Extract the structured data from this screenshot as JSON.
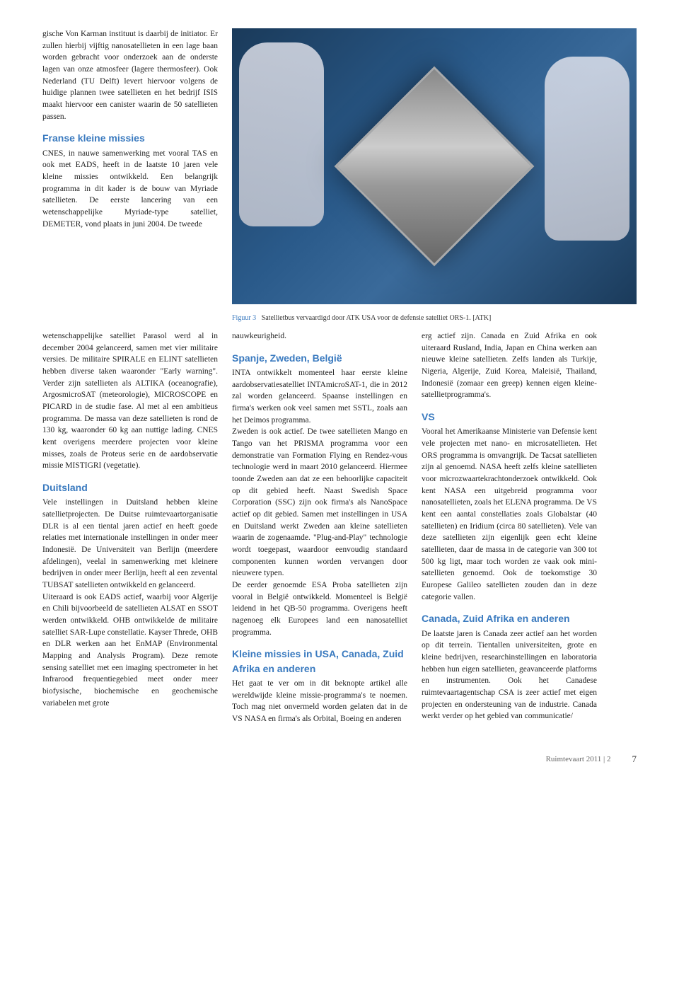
{
  "colors": {
    "heading": "#3a7abf",
    "caption_label": "#3a7abf",
    "body_text": "#222222",
    "footer_text": "#666666",
    "background": "#ffffff"
  },
  "typography": {
    "body_fontsize": 11.5,
    "heading_fontsize": 14,
    "caption_fontsize": 10,
    "footer_fontsize": 11
  },
  "photo": {
    "alt": "Twee technici in cleanroom-pakken werken aan een satellietbus",
    "caption_label": "Figuur 3",
    "caption_text": "Satellietbus vervaardigd door ATK USA voor de defensie satelliet ORS-1. [ATK]"
  },
  "col1_top": {
    "p1": "gische Von Karman instituut is daarbij de initiator. Er zullen hierbij vijftig nanosatellieten in een lage baan worden gebracht voor onderzoek aan de onderste lagen van onze atmosfeer (lagere thermosfeer). Ook Nederland (TU Delft) levert hiervoor volgens de huidige plannen twee satellieten en het bedrijf ISIS maakt hiervoor een canister waarin de 50 satellieten passen.",
    "h1": "Franse kleine missies",
    "p2": "CNES, in nauwe samenwerking met vooral TAS en ook met EADS, heeft in de laatste 10 jaren vele kleine missies ontwikkeld. Een belangrijk programma in dit kader is de bouw van Myriade satellieten. De eerste lancering van een wetenschappelijke Myriade-type satelliet, DEMETER, vond plaats in juni 2004. De tweede"
  },
  "col1_bottom": {
    "p1": "wetenschappelijke satelliet Parasol werd al in december 2004 gelanceerd, samen met vier militaire versies. De militaire SPIRALE en ELINT satellieten hebben diverse taken waaronder \"Early warning\". Verder zijn satellieten als ALTIKA (oceanografie), ArgosmicroSAT (meteorologie), MICROSCOPE en PICARD in de studie fase. Al met al een ambitieus programma. De massa van deze satellieten is rond de 130 kg, waaronder 60 kg aan nuttige lading. CNES kent overigens meerdere projecten voor kleine misses, zoals de Proteus serie en de aardobservatie missie MISTIGRI (vegetatie).",
    "h1": "Duitsland",
    "p2": "Vele instellingen in Duitsland hebben kleine satellietprojecten. De Duitse ruimtevaartorganisatie DLR is al een tiental jaren actief en heeft goede relaties met internationale instellingen in onder meer Indonesië. De Universiteit van Berlijn (meerdere afdelingen), veelal in samenwerking met kleinere bedrijven in onder meer Berlijn, heeft al een zevental TUBSAT satellieten ontwikkeld en gelanceerd.",
    "p3": "Uiteraard is ook EADS actief, waarbij voor Algerije en Chili bijvoorbeeld de satellieten ALSAT en SSOT werden ontwikkeld. OHB ontwikkelde de militaire satelliet SAR-Lupe constellatie. Kayser Threde, OHB en DLR werken aan het EnMAP (Environmental Mapping and Analysis Program). Deze remote sensing satelliet met een imaging spectrometer in het Infrarood frequentiegebied meet onder meer biofysische, biochemische en geochemische variabelen met grote"
  },
  "col2": {
    "p1": "nauwkeurigheid.",
    "h1": "Spanje, Zweden, België",
    "p2": "INTA ontwikkelt momenteel haar eerste kleine aardobservatiesatelliet INTAmicroSAT-1, die in 2012 zal worden gelanceerd. Spaanse instellingen en firma's werken ook veel samen met SSTL, zoals aan het Deimos programma.",
    "p3": "Zweden is ook actief. De twee satellieten Mango en Tango van het PRISMA programma voor een demonstratie van Formation Flying en Rendez-vous technologie werd in maart 2010 gelanceerd. Hiermee toonde Zweden aan dat ze een behoorlijke capaciteit op dit gebied heeft. Naast Swedish Space Corporation (SSC) zijn ook firma's als NanoSpace actief op dit gebied. Samen met instellingen in USA en Duitsland werkt Zweden aan kleine satellieten waarin de zogenaamde. \"Plug-and-Play\" technologie wordt toegepast, waardoor eenvoudig standaard componenten kunnen worden vervangen door nieuwere typen.",
    "p4": "De eerder genoemde ESA Proba satellieten zijn vooral in België ontwikkeld. Momenteel is België leidend in het QB-50 programma. Overigens heeft nagenoeg elk Europees land een nanosatelliet programma.",
    "h2": "Kleine missies in USA, Canada, Zuid Afrika en anderen",
    "p5": "Het gaat te ver om in dit beknopte artikel alle wereldwijde kleine missie-programma's te noemen. Toch mag niet onvermeld worden gelaten dat in de VS NASA en firma's als Orbital, Boeing en anderen"
  },
  "col3": {
    "p1": "erg actief zijn. Canada en Zuid Afrika en ook uiteraard Rusland, India, Japan en China werken aan nieuwe kleine satellieten. Zelfs landen als Turkije, Nigeria, Algerije, Zuid Korea, Maleisië, Thailand, Indonesië (zomaar een greep) kennen eigen kleine-satellietprogramma's.",
    "h1": "VS",
    "p2": "Vooral het Amerikaanse Ministerie van Defensie kent vele projecten met nano- en microsatellieten. Het ORS programma is omvangrijk. De Tacsat satellieten zijn al genoemd. NASA heeft zelfs kleine satellieten voor microzwaartekrachtonderzoek ontwikkeld. Ook kent NASA een uitgebreid programma voor nanosatellieten, zoals het ELENA programma. De VS kent een aantal constellaties zoals Globalstar (40 satellieten) en Iridium (circa 80 satellieten). Vele van deze satellieten zijn eigenlijk geen echt kleine satellieten, daar de massa in de categorie van 300 tot 500 kg ligt, maar toch worden ze vaak ook mini-satellieten genoemd. Ook de toekomstige 30 Europese Galileo satellieten zouden dan in deze categorie vallen.",
    "h2": "Canada, Zuid Afrika en anderen",
    "p3": "De laatste jaren is Canada zeer actief aan het worden op dit terrein. Tientallen universiteiten, grote en kleine bedrijven, researchinstellingen en laboratoria hebben hun eigen satellieten, geavanceerde platforms en instrumenten. Ook het Canadese ruimtevaartagentschap CSA is zeer actief met eigen projecten en ondersteuning van de industrie. Canada werkt verder op het gebied van communicatie/"
  },
  "footer": {
    "title": "Ruimtevaart 2011 | 2",
    "page": "7"
  }
}
